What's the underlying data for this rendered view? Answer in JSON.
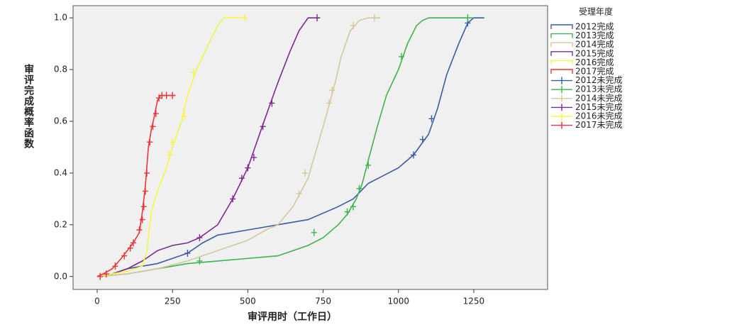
{
  "chart_data": {
    "type": "line",
    "x_label": "审评用时（工作日）",
    "y_label": "审评完成概率函数",
    "legend_title": "受理年度",
    "legend_position": "right",
    "xlim": [
      -80,
      1495
    ],
    "ylim": [
      -0.05,
      1.047
    ],
    "xticks": [
      0,
      250,
      500,
      750,
      1000,
      1250
    ],
    "yticks": [
      {
        "value": 0,
        "label": "0.0"
      },
      {
        "value": 0.2,
        "label": "0.2"
      },
      {
        "value": 0.4,
        "label": "0.4"
      },
      {
        "value": 0.6,
        "label": "0.6"
      },
      {
        "value": 0.8,
        "label": "0.8"
      },
      {
        "value": 1,
        "label": "1.0"
      }
    ],
    "series": [
      {
        "name": "2012完成",
        "color": "#3b5ba5",
        "mode": "line",
        "x": [
          0,
          50,
          100,
          200,
          300,
          350,
          400,
          500,
          600,
          700,
          800,
          850,
          900,
          950,
          1000,
          1050,
          1100,
          1130,
          1160,
          1200,
          1230,
          1250,
          1285
        ],
        "values": [
          0,
          0.01,
          0.03,
          0.05,
          0.09,
          0.13,
          0.16,
          0.18,
          0.2,
          0.22,
          0.27,
          0.3,
          0.36,
          0.39,
          0.42,
          0.47,
          0.55,
          0.65,
          0.78,
          0.9,
          0.98,
          1.0,
          1.0
        ]
      },
      {
        "name": "2013完成",
        "color": "#3cb44b",
        "mode": "line",
        "x": [
          0,
          100,
          200,
          300,
          400,
          500,
          600,
          700,
          750,
          800,
          830,
          860,
          880,
          900,
          930,
          960,
          1000,
          1030,
          1060,
          1080,
          1100,
          1250
        ],
        "values": [
          0,
          0.01,
          0.03,
          0.05,
          0.06,
          0.07,
          0.08,
          0.12,
          0.15,
          0.2,
          0.24,
          0.3,
          0.36,
          0.45,
          0.58,
          0.7,
          0.8,
          0.9,
          0.97,
          0.99,
          1.0,
          1.0
        ]
      },
      {
        "name": "2014完成",
        "color": "#d4c89a",
        "mode": "line",
        "x": [
          0,
          100,
          200,
          300,
          400,
          500,
          560,
          600,
          650,
          700,
          730,
          760,
          790,
          810,
          840,
          870,
          900,
          940
        ],
        "values": [
          0,
          0.01,
          0.03,
          0.06,
          0.1,
          0.14,
          0.18,
          0.2,
          0.27,
          0.38,
          0.5,
          0.62,
          0.75,
          0.85,
          0.95,
          0.99,
          1.0,
          1.0
        ]
      },
      {
        "name": "2015完成",
        "color": "#7d2a8e",
        "mode": "line",
        "x": [
          0,
          50,
          100,
          150,
          200,
          250,
          300,
          340,
          400,
          450,
          500,
          530,
          560,
          600,
          640,
          670,
          700,
          740
        ],
        "values": [
          0,
          0.01,
          0.03,
          0.06,
          0.1,
          0.12,
          0.13,
          0.15,
          0.2,
          0.3,
          0.42,
          0.52,
          0.62,
          0.75,
          0.87,
          0.95,
          1.0,
          1.0
        ]
      },
      {
        "name": "2016完成",
        "color": "#f5f542",
        "mode": "line",
        "x": [
          0,
          100,
          150,
          165,
          180,
          200,
          230,
          250,
          280,
          300,
          330,
          370,
          400,
          420,
          490
        ],
        "values": [
          0,
          0.02,
          0.04,
          0.1,
          0.25,
          0.33,
          0.42,
          0.5,
          0.6,
          0.7,
          0.8,
          0.9,
          0.97,
          1.0,
          1.0
        ]
      },
      {
        "name": "2017完成",
        "color": "#e8343a",
        "mode": "line",
        "x": [
          0,
          20,
          50,
          80,
          100,
          120,
          140,
          150,
          160,
          170,
          180,
          190,
          200,
          210,
          260
        ],
        "values": [
          0,
          0.01,
          0.03,
          0.07,
          0.1,
          0.13,
          0.17,
          0.25,
          0.35,
          0.5,
          0.57,
          0.62,
          0.68,
          0.7,
          0.7
        ]
      },
      {
        "name": "2012未完成",
        "color": "#3b5ba5",
        "mode": "marker",
        "x": [
          300,
          1050,
          1080,
          1110,
          1230
        ],
        "values": [
          0.09,
          0.47,
          0.53,
          0.61,
          0.98
        ]
      },
      {
        "name": "2013未完成",
        "color": "#3cb44b",
        "mode": "marker",
        "x": [
          340,
          720,
          830,
          850,
          870,
          900,
          1010,
          1230
        ],
        "values": [
          0.06,
          0.17,
          0.25,
          0.27,
          0.34,
          0.43,
          0.85,
          1.0
        ]
      },
      {
        "name": "2014未完成",
        "color": "#d4c89a",
        "mode": "marker",
        "x": [
          670,
          690,
          770,
          780,
          850,
          920
        ],
        "values": [
          0.32,
          0.4,
          0.67,
          0.72,
          0.97,
          1.0
        ]
      },
      {
        "name": "2015未完成",
        "color": "#7d2a8e",
        "mode": "marker",
        "x": [
          340,
          450,
          480,
          500,
          520,
          550,
          580,
          730
        ],
        "values": [
          0.15,
          0.3,
          0.38,
          0.42,
          0.46,
          0.58,
          0.67,
          1.0
        ]
      },
      {
        "name": "2016未完成",
        "color": "#f5f542",
        "mode": "marker",
        "x": [
          240,
          250,
          290,
          320,
          490
        ],
        "values": [
          0.47,
          0.52,
          0.62,
          0.79,
          1.0
        ]
      },
      {
        "name": "2017未完成",
        "color": "#e8343a",
        "mode": "marker",
        "x": [
          10,
          30,
          60,
          90,
          110,
          120,
          140,
          150,
          155,
          160,
          165,
          175,
          185,
          195,
          205,
          215,
          230,
          250
        ],
        "values": [
          0,
          0.01,
          0.04,
          0.08,
          0.11,
          0.13,
          0.18,
          0.22,
          0.27,
          0.33,
          0.4,
          0.52,
          0.58,
          0.63,
          0.69,
          0.7,
          0.7,
          0.7
        ]
      }
    ]
  }
}
